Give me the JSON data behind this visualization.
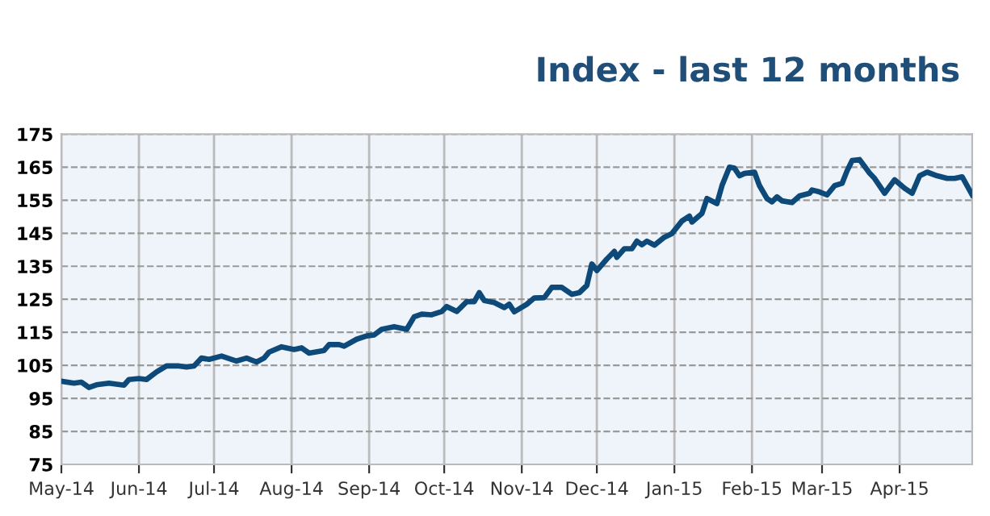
{
  "chart_data": {
    "type": "line",
    "title": "Index - last 12 months",
    "grid": true,
    "legend": false,
    "marker": "none",
    "line_style": "solid",
    "xlim": [
      "2014-05-01",
      "2015-04-30"
    ],
    "xticks": [
      {
        "value": "2014-05-01",
        "label": "May-14"
      },
      {
        "value": "2014-06-01",
        "label": "Jun-14"
      },
      {
        "value": "2014-07-01",
        "label": "Jul-14"
      },
      {
        "value": "2014-08-01",
        "label": "Aug-14"
      },
      {
        "value": "2014-09-01",
        "label": "Sep-14"
      },
      {
        "value": "2014-10-01",
        "label": "Oct-14"
      },
      {
        "value": "2014-11-01",
        "label": "Nov-14"
      },
      {
        "value": "2014-12-01",
        "label": "Dec-14"
      },
      {
        "value": "2015-01-01",
        "label": "Jan-15"
      },
      {
        "value": "2015-02-01",
        "label": "Feb-15"
      },
      {
        "value": "2015-03-01",
        "label": "Mar-15"
      },
      {
        "value": "2015-04-01",
        "label": "Apr-15"
      }
    ],
    "ylim": [
      75,
      175
    ],
    "yticks": [
      75,
      85,
      95,
      105,
      115,
      125,
      135,
      145,
      155,
      165,
      175
    ],
    "x": [
      "2014-05-01",
      "2014-05-06",
      "2014-05-09",
      "2014-05-12",
      "2014-05-15",
      "2014-05-20",
      "2014-05-26",
      "2014-05-28",
      "2014-06-01",
      "2014-06-04",
      "2014-06-08",
      "2014-06-12",
      "2014-06-17",
      "2014-06-20",
      "2014-06-23",
      "2014-06-26",
      "2014-06-29",
      "2014-07-04",
      "2014-07-10",
      "2014-07-14",
      "2014-07-18",
      "2014-07-21",
      "2014-07-23",
      "2014-07-28",
      "2014-08-02",
      "2014-08-05",
      "2014-08-08",
      "2014-08-14",
      "2014-08-16",
      "2014-08-20",
      "2014-08-22",
      "2014-08-27",
      "2014-08-31",
      "2014-09-03",
      "2014-09-06",
      "2014-09-11",
      "2014-09-16",
      "2014-09-19",
      "2014-09-22",
      "2014-09-26",
      "2014-09-30",
      "2014-10-02",
      "2014-10-06",
      "2014-10-10",
      "2014-10-13",
      "2014-10-15",
      "2014-10-17",
      "2014-10-21",
      "2014-10-25",
      "2014-10-27",
      "2014-10-29",
      "2014-11-03",
      "2014-11-06",
      "2014-11-10",
      "2014-11-13",
      "2014-11-17",
      "2014-11-21",
      "2014-11-24",
      "2014-11-27",
      "2014-11-29",
      "2014-12-01",
      "2014-12-05",
      "2014-12-08",
      "2014-12-09",
      "2014-12-12",
      "2014-12-15",
      "2014-12-17",
      "2014-12-19",
      "2014-12-21",
      "2014-12-24",
      "2014-12-28",
      "2014-12-31",
      "2015-01-04",
      "2015-01-07",
      "2015-01-08",
      "2015-01-12",
      "2015-01-14",
      "2015-01-18",
      "2015-01-20",
      "2015-01-23",
      "2015-01-25",
      "2015-01-27",
      "2015-01-29",
      "2015-02-02",
      "2015-02-04",
      "2015-02-07",
      "2015-02-09",
      "2015-02-11",
      "2015-02-13",
      "2015-02-17",
      "2015-02-20",
      "2015-02-24",
      "2015-02-25",
      "2015-02-28",
      "2015-03-03",
      "2015-03-06",
      "2015-03-09",
      "2015-03-11",
      "2015-03-13",
      "2015-03-16",
      "2015-03-20",
      "2015-03-22",
      "2015-03-26",
      "2015-03-30",
      "2015-04-03",
      "2015-04-06",
      "2015-04-09",
      "2015-04-12",
      "2015-04-16",
      "2015-04-20",
      "2015-04-23",
      "2015-04-26",
      "2015-04-30"
    ],
    "series": [
      {
        "color": "#0d4a7a",
        "values": [
          100.2,
          99.6,
          99.9,
          98.3,
          99.1,
          99.6,
          99,
          100.7,
          101,
          100.7,
          103,
          104.8,
          104.8,
          104.5,
          104.8,
          107.2,
          106.8,
          107.8,
          106.3,
          107.2,
          106,
          107.2,
          109,
          110.6,
          109.8,
          110.3,
          108.7,
          109.5,
          111.3,
          111.3,
          110.8,
          112.9,
          113.9,
          114.2,
          115.9,
          116.7,
          115.9,
          119.7,
          120.5,
          120.3,
          121.3,
          122.8,
          121.3,
          124.3,
          124.3,
          127,
          124.6,
          124,
          122.5,
          123.5,
          121.2,
          123.5,
          125.4,
          125.5,
          128.6,
          128.6,
          126.5,
          127,
          129.2,
          135.7,
          133.7,
          137.2,
          139.5,
          137.7,
          140.3,
          140.3,
          142.6,
          141.5,
          142.6,
          141.4,
          143.8,
          144.9,
          148.7,
          150.2,
          148.4,
          151,
          155.5,
          154,
          159.4,
          165,
          164.7,
          162.4,
          163.1,
          163.5,
          159.4,
          155.5,
          154.5,
          156,
          154.8,
          154.3,
          156.3,
          157.1,
          158.1,
          157.5,
          156.6,
          159.4,
          160.1,
          163.9,
          167,
          167.3,
          163.2,
          161.6,
          157.1,
          161.2,
          158.6,
          157.1,
          162.4,
          163.5,
          162.4,
          161.6,
          161.6,
          162.1,
          156.6
        ]
      }
    ]
  }
}
